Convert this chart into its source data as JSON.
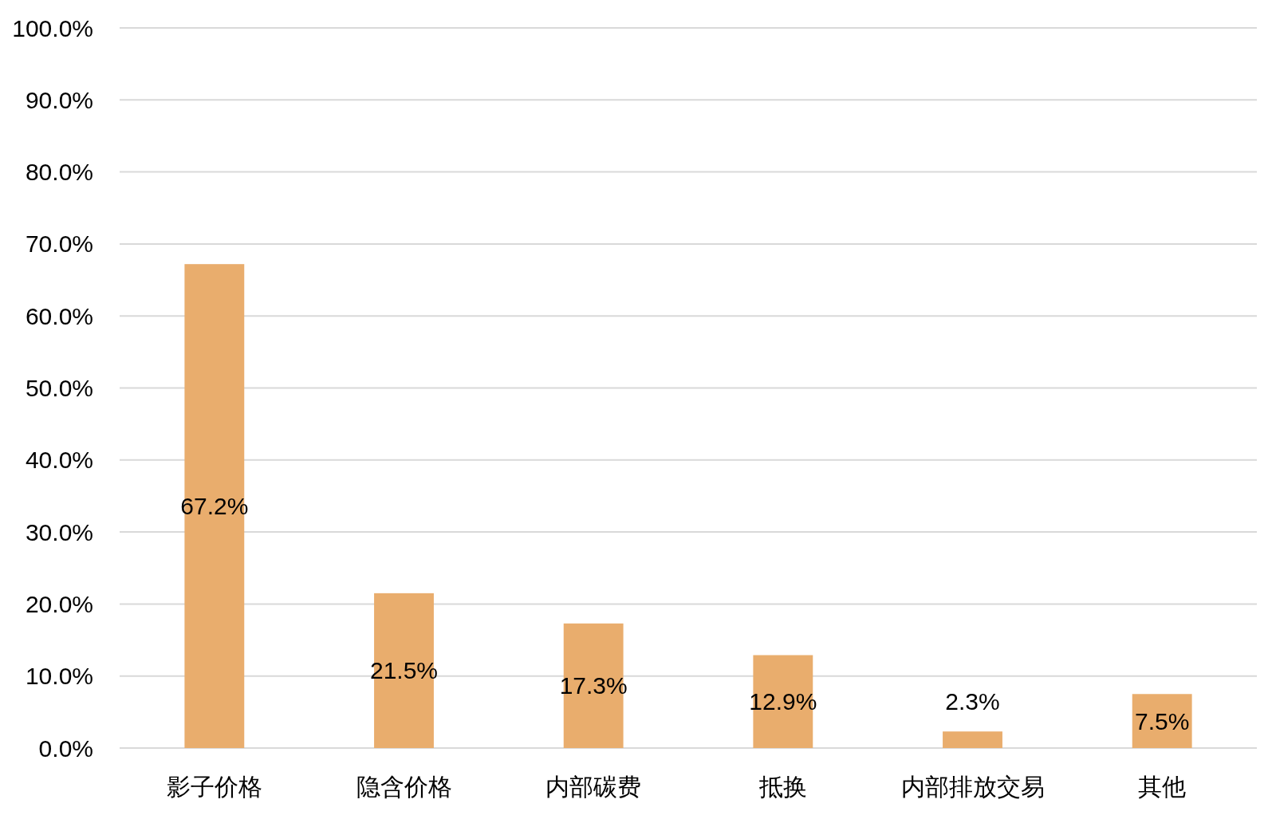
{
  "chart_data": {
    "type": "bar",
    "categories": [
      "影子价格",
      "隐含价格",
      "内部碳费",
      "抵换",
      "内部排放交易",
      "其他"
    ],
    "values": [
      67.2,
      21.5,
      17.3,
      12.9,
      2.3,
      7.5
    ],
    "value_labels": [
      "67.2%",
      "21.5%",
      "17.3%",
      "12.9%",
      "2.3%",
      "7.5%"
    ],
    "color": "#e9ad6d",
    "ylim": [
      0,
      100
    ],
    "yticks": [
      {
        "value": 0,
        "label": "0.0%"
      },
      {
        "value": 10,
        "label": "10.0%"
      },
      {
        "value": 20,
        "label": "20.0%"
      },
      {
        "value": 30,
        "label": "30.0%"
      },
      {
        "value": 40,
        "label": "40.0%"
      },
      {
        "value": 50,
        "label": "50.0%"
      },
      {
        "value": 60,
        "label": "60.0%"
      },
      {
        "value": 70,
        "label": "70.0%"
      },
      {
        "value": 80,
        "label": "80.0%"
      },
      {
        "value": 90,
        "label": "90.0%"
      },
      {
        "value": 100,
        "label": "100.0%"
      }
    ],
    "grid": "y"
  }
}
